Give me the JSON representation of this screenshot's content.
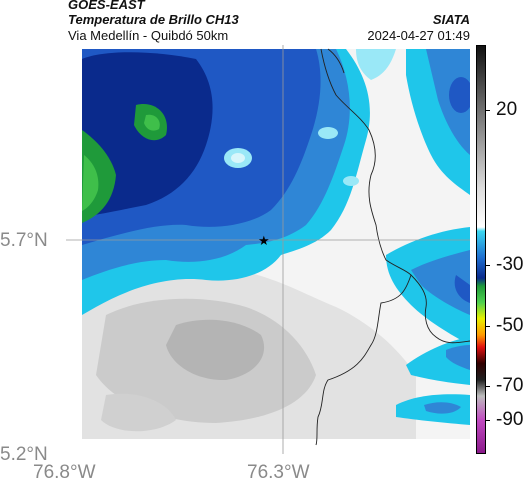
{
  "header": {
    "satellite": "GOES-EAST",
    "product": "Temperatura de Brillo CH13",
    "location": "Via Medellín - Quibdó 50km",
    "organization": "SIATA",
    "datetime": "2024-04-27 01:49"
  },
  "axes": {
    "latitude_ticks": [
      "5.7°N",
      "5.2°N"
    ],
    "longitude_ticks": [
      "76.8°W",
      "76.3°W"
    ]
  },
  "colorbar": {
    "tick_labels": [
      "20",
      "-30",
      "-50",
      "-70",
      "-90"
    ]
  },
  "colors": {
    "deep_blue": "#0a2a8c",
    "blue": "#1f58c4",
    "mid_blue": "#2f86d6",
    "cyan": "#1fc6ea",
    "light_cyan": "#9ae8f7",
    "green": "#1f9a3a",
    "light_green": "#3fbf4a",
    "white": "#f6f6f6",
    "light_grey": "#dcdcdc",
    "grey": "#b6b6b6",
    "dark_grey": "#9a9a9a"
  }
}
